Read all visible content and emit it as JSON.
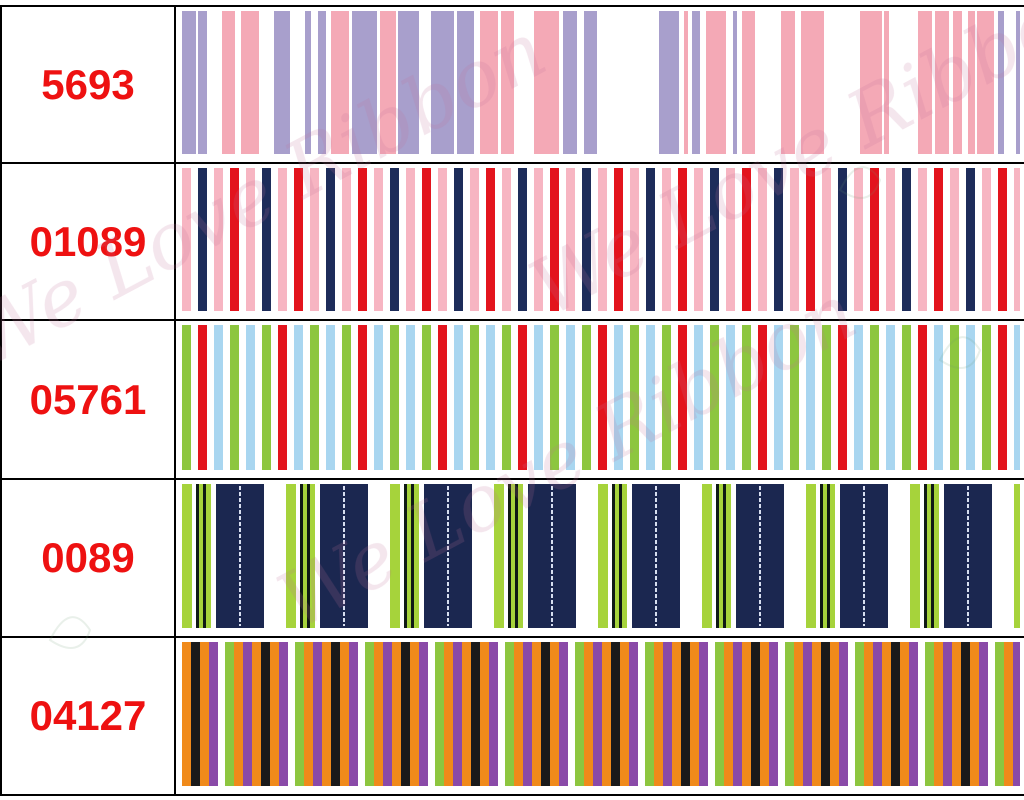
{
  "ribbons": [
    {
      "code": "5693",
      "pattern": "random",
      "colors": [
        "#f4a9b6",
        "#a89fcc",
        "#ffffff"
      ],
      "background": "#ffffff"
    },
    {
      "code": "01089",
      "pattern": "cycle",
      "colors": [
        "#f7b5c2",
        "#ffffff",
        "#1d2c5a",
        "#ffffff",
        "#f7b5c2",
        "#ffffff",
        "#e3141d",
        "#ffffff"
      ],
      "background": "#ffffff"
    },
    {
      "code": "05761",
      "pattern": "cycle",
      "colors": [
        "#8dc63f",
        "#ffffff",
        "#e3141d",
        "#ffffff",
        "#a9d6f0",
        "#ffffff",
        "#8dc63f",
        "#ffffff",
        "#a9d6f0",
        "#ffffff"
      ],
      "background": "#ffffff"
    },
    {
      "code": "0089",
      "pattern": "blocks",
      "colors": [
        "#1b2750",
        "#a6d33b",
        "#0f1a14",
        "#ffffff"
      ],
      "background": "#ffffff"
    },
    {
      "code": "04127",
      "pattern": "cycle",
      "colors": [
        "#f08a1a",
        "#1a1a1a",
        "#f08a1a",
        "#8a4aa8",
        "#ffffff",
        "#8dc63f",
        "#f08a1a",
        "#8a4aa8"
      ],
      "background": "#ffffff"
    }
  ],
  "watermark_text": "We Love Ribbon"
}
